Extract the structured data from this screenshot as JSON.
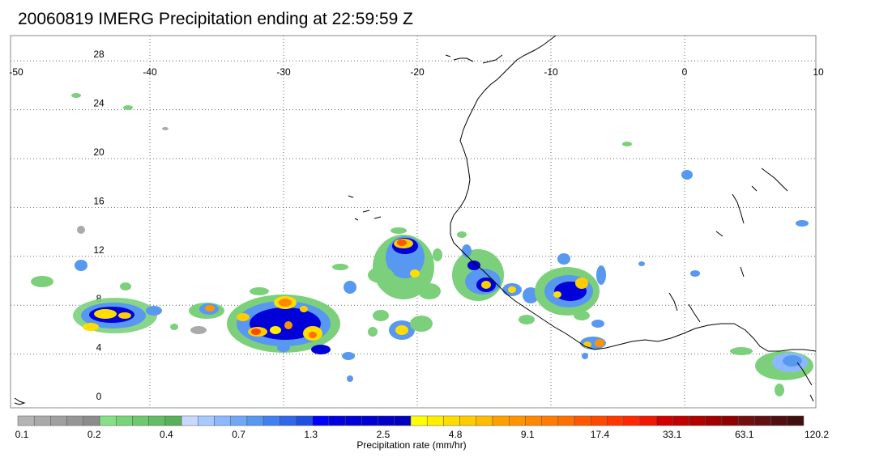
{
  "title": "20060819 IMERG Precipitation ending at 22:59:59 Z",
  "map": {
    "lon_labels": [
      "-50",
      "-40",
      "-30",
      "-20",
      "-10",
      "0",
      "10"
    ],
    "lon_values": [
      -50,
      -40,
      -30,
      -20,
      -10,
      0,
      10
    ],
    "lat_labels": [
      "28",
      "24",
      "20",
      "16",
      "12",
      "8",
      "4",
      "0"
    ],
    "lat_values": [
      28,
      24,
      20,
      16,
      12,
      8,
      4,
      0
    ],
    "lon_range": [
      -50,
      10
    ],
    "lat_range": [
      -0.5,
      30
    ],
    "grid": "dotted"
  },
  "colorbar": {
    "title": "Precipitation rate (mm/hr)",
    "tick_labels": [
      "0.1",
      "0.2",
      "0.4",
      "0.7",
      "1.3",
      "2.5",
      "4.8",
      "9.1",
      "17.4",
      "33.1",
      "63.1",
      "120.2"
    ],
    "colors": [
      "#b4b4b4",
      "#aaaaaa",
      "#a0a0a0",
      "#969696",
      "#8c8c8c",
      "#86e086",
      "#78d478",
      "#6ec86e",
      "#64bc64",
      "#58b058",
      "#c8d8ff",
      "#a8c8ff",
      "#8cb8ff",
      "#70a8f5",
      "#5898f0",
      "#4080f0",
      "#3068e8",
      "#2050e0",
      "#0000ff",
      "#0000e0",
      "#0000d8",
      "#0000d0",
      "#0000c8",
      "#0000c0",
      "#ffff00",
      "#ffee00",
      "#ffdd00",
      "#ffcc00",
      "#ffbb00",
      "#ffa000",
      "#ff9400",
      "#ff8800",
      "#ff7c00",
      "#ff7000",
      "#ff5800",
      "#ff4800",
      "#ff3800",
      "#ff2800",
      "#f01800",
      "#d00000",
      "#c00000",
      "#b00000",
      "#a00000",
      "#900000",
      "#701010",
      "#601010",
      "#501010",
      "#401010"
    ]
  }
}
